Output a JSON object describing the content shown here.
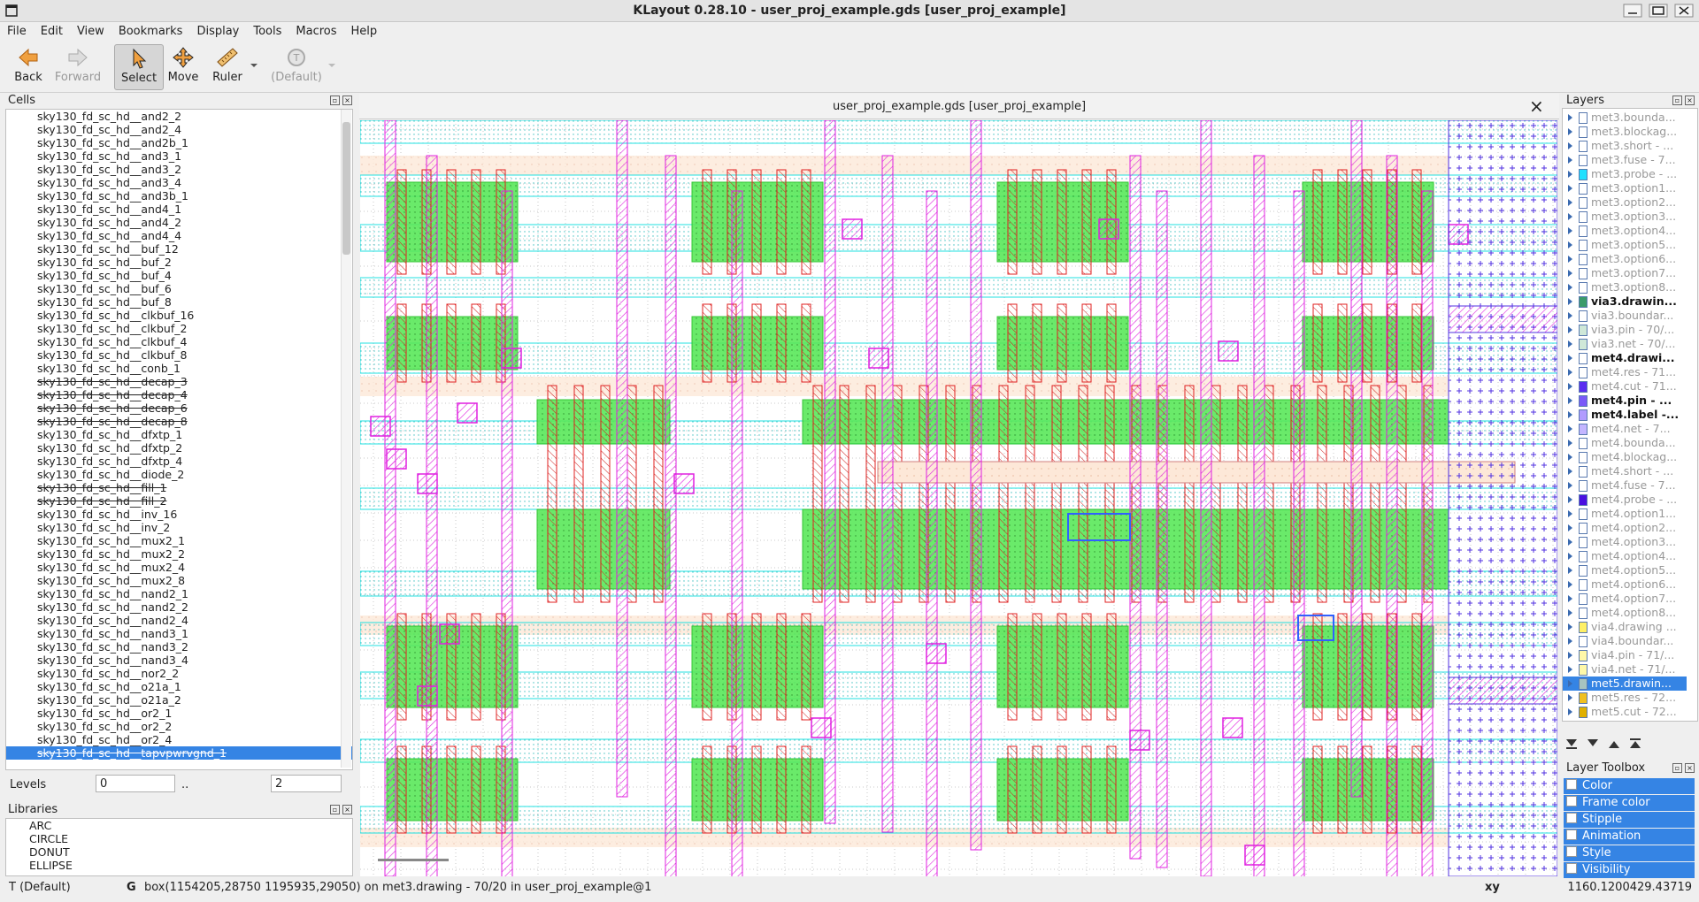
{
  "window_title": "KLayout 0.28.10 - user_proj_example.gds [user_proj_example]",
  "menu": [
    "File",
    "Edit",
    "View",
    "Bookmarks",
    "Display",
    "Tools",
    "Macros",
    "Help"
  ],
  "toolbar": [
    {
      "label": "Back",
      "enabled": true
    },
    {
      "label": "Forward",
      "enabled": false
    },
    {
      "label": "Select",
      "enabled": true,
      "active": true
    },
    {
      "label": "Move",
      "enabled": true
    },
    {
      "label": "Ruler",
      "enabled": true
    },
    {
      "label": "(Default)",
      "enabled": false
    }
  ],
  "cells": {
    "title": "Cells",
    "items": [
      {
        "name": "sky130_fd_sc_hd__and2_2"
      },
      {
        "name": "sky130_fd_sc_hd__and2_4"
      },
      {
        "name": "sky130_fd_sc_hd__and2b_1"
      },
      {
        "name": "sky130_fd_sc_hd__and3_1"
      },
      {
        "name": "sky130_fd_sc_hd__and3_2"
      },
      {
        "name": "sky130_fd_sc_hd__and3_4"
      },
      {
        "name": "sky130_fd_sc_hd__and3b_1"
      },
      {
        "name": "sky130_fd_sc_hd__and4_1"
      },
      {
        "name": "sky130_fd_sc_hd__and4_2"
      },
      {
        "name": "sky130_fd_sc_hd__and4_4"
      },
      {
        "name": "sky130_fd_sc_hd__buf_12"
      },
      {
        "name": "sky130_fd_sc_hd__buf_2"
      },
      {
        "name": "sky130_fd_sc_hd__buf_4"
      },
      {
        "name": "sky130_fd_sc_hd__buf_6"
      },
      {
        "name": "sky130_fd_sc_hd__buf_8"
      },
      {
        "name": "sky130_fd_sc_hd__clkbuf_16"
      },
      {
        "name": "sky130_fd_sc_hd__clkbuf_2"
      },
      {
        "name": "sky130_fd_sc_hd__clkbuf_4"
      },
      {
        "name": "sky130_fd_sc_hd__clkbuf_8"
      },
      {
        "name": "sky130_fd_sc_hd__conb_1"
      },
      {
        "name": "sky130_fd_sc_hd__decap_3",
        "struck": true
      },
      {
        "name": "sky130_fd_sc_hd__decap_4",
        "struck": true
      },
      {
        "name": "sky130_fd_sc_hd__decap_6",
        "struck": true
      },
      {
        "name": "sky130_fd_sc_hd__decap_8",
        "struck": true
      },
      {
        "name": "sky130_fd_sc_hd__dfxtp_1"
      },
      {
        "name": "sky130_fd_sc_hd__dfxtp_2"
      },
      {
        "name": "sky130_fd_sc_hd__dfxtp_4"
      },
      {
        "name": "sky130_fd_sc_hd__diode_2"
      },
      {
        "name": "sky130_fd_sc_hd__fill_1",
        "struck": true
      },
      {
        "name": "sky130_fd_sc_hd__fill_2",
        "struck": true
      },
      {
        "name": "sky130_fd_sc_hd__inv_16"
      },
      {
        "name": "sky130_fd_sc_hd__inv_2"
      },
      {
        "name": "sky130_fd_sc_hd__mux2_1"
      },
      {
        "name": "sky130_fd_sc_hd__mux2_2"
      },
      {
        "name": "sky130_fd_sc_hd__mux2_4"
      },
      {
        "name": "sky130_fd_sc_hd__mux2_8"
      },
      {
        "name": "sky130_fd_sc_hd__nand2_1"
      },
      {
        "name": "sky130_fd_sc_hd__nand2_2"
      },
      {
        "name": "sky130_fd_sc_hd__nand2_4"
      },
      {
        "name": "sky130_fd_sc_hd__nand3_1"
      },
      {
        "name": "sky130_fd_sc_hd__nand3_2"
      },
      {
        "name": "sky130_fd_sc_hd__nand3_4"
      },
      {
        "name": "sky130_fd_sc_hd__nor2_2"
      },
      {
        "name": "sky130_fd_sc_hd__o21a_1"
      },
      {
        "name": "sky130_fd_sc_hd__o21a_2"
      },
      {
        "name": "sky130_fd_sc_hd__or2_1"
      },
      {
        "name": "sky130_fd_sc_hd__or2_2"
      },
      {
        "name": "sky130_fd_sc_hd__or2_4"
      },
      {
        "name": "sky130_fd_sc_hd__tapvpwrvgnd_1",
        "struck": true,
        "selected": true
      }
    ]
  },
  "levels": {
    "label": "Levels",
    "from": 0,
    "separator": "..",
    "to": 2
  },
  "libraries": {
    "title": "Libraries",
    "items": [
      "ARC",
      "CIRCLE",
      "DONUT",
      "ELLIPSE"
    ]
  },
  "layout_tab": {
    "title": "user_proj_example.gds [user_proj_example]"
  },
  "layers": {
    "title": "Layers",
    "items": [
      {
        "name": "met3.bounda...",
        "color": "#ffffff"
      },
      {
        "name": "met3.blockag...",
        "color": "#ffffff"
      },
      {
        "name": "met3.short - ...",
        "color": "#ffffff"
      },
      {
        "name": "met3.fuse - 7...",
        "color": "#ffffff"
      },
      {
        "name": "met3.probe - ...",
        "color": "#22e0ff"
      },
      {
        "name": "met3.option1...",
        "color": "#ffffff"
      },
      {
        "name": "met3.option2...",
        "color": "#ffffff"
      },
      {
        "name": "met3.option3...",
        "color": "#ffffff"
      },
      {
        "name": "met3.option4...",
        "color": "#ffffff"
      },
      {
        "name": "met3.option5...",
        "color": "#ffffff"
      },
      {
        "name": "met3.option6...",
        "color": "#ffffff"
      },
      {
        "name": "met3.option7...",
        "color": "#ffffff"
      },
      {
        "name": "met3.option8...",
        "color": "#ffffff"
      },
      {
        "name": "via3.drawin...",
        "color": "#3a9a6a",
        "bold": true
      },
      {
        "name": "via3.boundar...",
        "color": "#ffffff"
      },
      {
        "name": "via3.pin - 70/...",
        "color": "#cfe8d8"
      },
      {
        "name": "via3.net - 70/...",
        "color": "#cfe8d8"
      },
      {
        "name": "met4.drawi...",
        "color": "#ffffff",
        "bold": true
      },
      {
        "name": "met4.res - 71...",
        "color": "#ffffff"
      },
      {
        "name": "met4.cut - 71...",
        "color": "#5a2cf0"
      },
      {
        "name": "met4.pin - ...",
        "color": "#7a5af8",
        "bold": true
      },
      {
        "name": "met4.label -...",
        "color": "#b19cff",
        "bold": true
      },
      {
        "name": "met4.net - 7...",
        "color": "#c4b6ff"
      },
      {
        "name": "met4.bounda...",
        "color": "#ffffff"
      },
      {
        "name": "met4.blockag...",
        "color": "#ffffff"
      },
      {
        "name": "met4.short - ...",
        "color": "#ffffff"
      },
      {
        "name": "met4.fuse - 7...",
        "color": "#ffffff"
      },
      {
        "name": "met4.probe - ...",
        "color": "#4a10e0"
      },
      {
        "name": "met4.option1...",
        "color": "#ffffff"
      },
      {
        "name": "met4.option2...",
        "color": "#ffffff"
      },
      {
        "name": "met4.option3...",
        "color": "#ffffff"
      },
      {
        "name": "met4.option4...",
        "color": "#ffffff"
      },
      {
        "name": "met4.option5...",
        "color": "#ffffff"
      },
      {
        "name": "met4.option6...",
        "color": "#ffffff"
      },
      {
        "name": "met4.option7...",
        "color": "#ffffff"
      },
      {
        "name": "met4.option8...",
        "color": "#ffffff"
      },
      {
        "name": "via4.drawing ...",
        "color": "#fff066"
      },
      {
        "name": "via4.boundar...",
        "color": "#ffffff"
      },
      {
        "name": "via4.pin - 71/...",
        "color": "#fff8a8"
      },
      {
        "name": "via4.net - 71/...",
        "color": "#fff8a8"
      },
      {
        "name": "met5.drawin...",
        "color": "#a8c4c0",
        "selected": true
      },
      {
        "name": "met5.res - 72...",
        "color": "#f0c020"
      },
      {
        "name": "met5.cut - 72...",
        "color": "#e0b000"
      }
    ]
  },
  "layer_toolbox": {
    "title": "Layer Toolbox",
    "items": [
      "Color",
      "Frame color",
      "Stipple",
      "Animation",
      "Style",
      "Visibility"
    ]
  },
  "status_bar": {
    "mode": "T (Default)",
    "grid": "G",
    "message": "box(1154205,28750 1195935,29050) on met3.drawing - 70/20 in user_proj_example@1",
    "coord_label": "xy",
    "x": 1160.12004,
    "y": 29.43719
  }
}
